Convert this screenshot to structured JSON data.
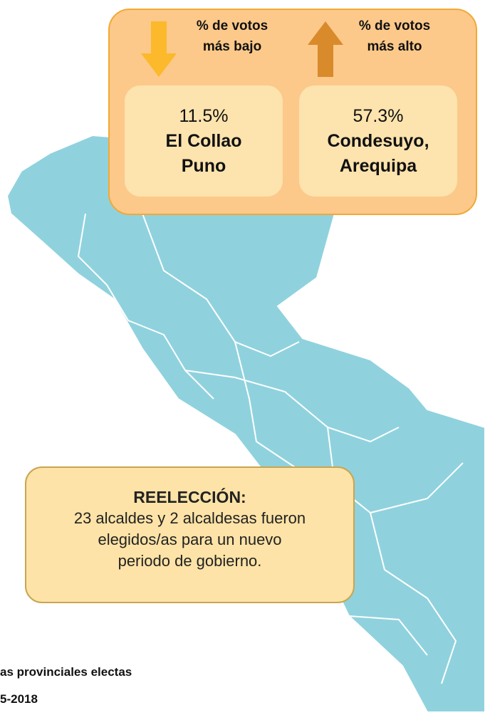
{
  "lowest": {
    "label": [
      "% de votos",
      "más bajo"
    ],
    "value": "11.5%",
    "place": [
      "El Collao",
      "Puno"
    ]
  },
  "highest": {
    "label": [
      "% de votos",
      "más alto"
    ],
    "value": "57.3%",
    "place": [
      "Condesuyo,",
      "Arequipa"
    ]
  },
  "reelection": {
    "title": "REELECCIÓN:",
    "text": [
      "23 alcaldes y 2 alcaldesas fueron",
      "elegidos/as para un nuevo",
      "periodo de gobierno."
    ]
  },
  "footer": [
    "as provinciales electas",
    "5-2018"
  ]
}
